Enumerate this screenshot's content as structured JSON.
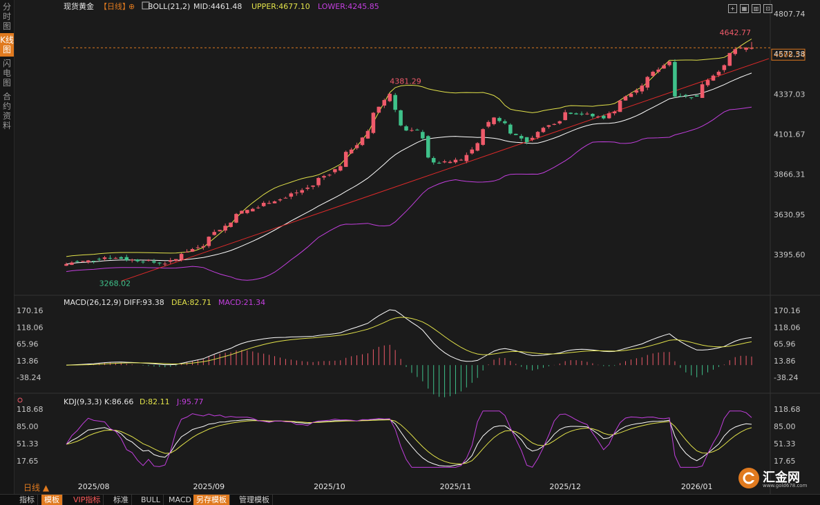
{
  "sidebar": {
    "tabs": [
      "分时图",
      "K线图",
      "闪电图",
      "合约资料"
    ],
    "active_index": 1
  },
  "header": {
    "symbol": "现货黄金",
    "period_tag": "【日线】",
    "boll": "BOLL(21,2)",
    "mid": "MID:4461.48",
    "upper": "UPPER:4677.10",
    "lower": "LOWER:4245.85"
  },
  "price_axis": {
    "labels": [
      "4807.74",
      "4572.38",
      "4337.03",
      "4101.67",
      "3866.31",
      "3630.95",
      "3395.60"
    ],
    "current_price": "4608.54"
  },
  "annotations": {
    "high": "4642.77",
    "peak_oct": "4381.29",
    "low_aug": "3268.02"
  },
  "macd_header": {
    "title": "MACD(26,12,9)",
    "diff": "DIFF:93.38",
    "dea": "DEA:82.71",
    "macd": "MACD:21.34"
  },
  "macd_axis": {
    "labels": [
      "170.16",
      "118.06",
      "65.96",
      "13.86",
      "-38.24"
    ]
  },
  "kdj_header": {
    "title": "KDJ(9,3,3)",
    "k": "K:86.66",
    "d": "D:82.11",
    "j": "J:95.77"
  },
  "kdj_axis": {
    "labels": [
      "118.68",
      "85.00",
      "51.33",
      "17.65"
    ]
  },
  "time_axis": {
    "labels": [
      "2025/08",
      "2025/09",
      "2025/10",
      "2025/11",
      "2025/12",
      "2026/01"
    ]
  },
  "period_label": "日线 ▲",
  "toolbar": {
    "items": [
      "指标",
      "模板",
      "VIP指标",
      "标准",
      "BULL",
      "MACD",
      "另存模板",
      "管理模板"
    ]
  },
  "logo": {
    "name": "汇金网",
    "url": "www.gold678.com"
  },
  "colors": {
    "up": "#ef5a6a",
    "down": "#3fc18a",
    "mid": "#ffffff",
    "upper": "#e3e34a",
    "lower": "#c43fe0",
    "trend": "#e02a2a",
    "accent": "#e07a1f"
  },
  "chart_data": {
    "type": "candlestick",
    "anchors": [
      {
        "date": "2025-07-25",
        "close": 3340
      },
      {
        "date": "2025-08-01",
        "close": 3362
      },
      {
        "date": "2025-08-05",
        "close": 3380
      },
      {
        "date": "2025-08-20",
        "close": 3345
      },
      {
        "date": "2025-08-29",
        "close": 3450
      },
      {
        "date": "2025-09-08",
        "close": 3640
      },
      {
        "date": "2025-09-23",
        "close": 3760
      },
      {
        "date": "2025-10-01",
        "close": 3870
      },
      {
        "date": "2025-10-08",
        "close": 4040
      },
      {
        "date": "2025-10-16",
        "close": 4340
      },
      {
        "date": "2025-10-17",
        "close": 4250
      },
      {
        "date": "2025-10-21",
        "close": 4120
      },
      {
        "date": "2025-10-23",
        "close": 4120
      },
      {
        "date": "2025-10-28",
        "close": 3930
      },
      {
        "date": "2025-11-04",
        "close": 3950
      },
      {
        "date": "2025-11-12",
        "close": 4200
      },
      {
        "date": "2025-11-20",
        "close": 4060
      },
      {
        "date": "2025-12-01",
        "close": 4230
      },
      {
        "date": "2025-12-10",
        "close": 4200
      },
      {
        "date": "2025-12-22",
        "close": 4440
      },
      {
        "date": "2025-12-26",
        "close": 4530
      },
      {
        "date": "2025-12-29",
        "close": 4330
      },
      {
        "date": "2026-01-02",
        "close": 4320
      },
      {
        "date": "2026-01-09",
        "close": 4500
      },
      {
        "date": "2026-01-13",
        "close": 4600
      },
      {
        "date": "2026-01-16",
        "close": 4608.54
      }
    ],
    "price_range": [
      3268.02,
      4807.74
    ],
    "high": 4642.77,
    "current": 4608.54,
    "boll_last": {
      "mid": 4461.48,
      "upper": 4677.1,
      "lower": 4245.85
    },
    "macd_last": {
      "diff": 93.38,
      "dea": 82.71,
      "macd": 21.34
    },
    "macd_range": [
      -38.24,
      170.16
    ],
    "kdj_last": {
      "k": 86.66,
      "d": 82.11,
      "j": 95.77
    },
    "kdj_range": [
      17.65,
      118.68
    ]
  }
}
